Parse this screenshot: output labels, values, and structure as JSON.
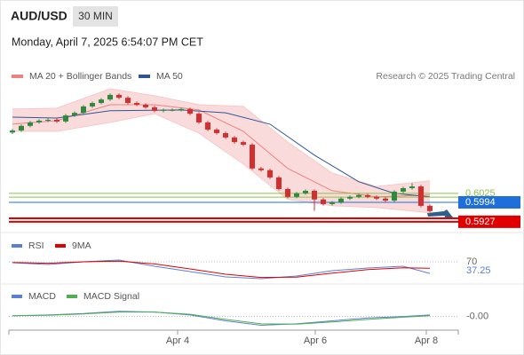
{
  "header": {
    "symbol": "AUD/USD",
    "timeframe": "30 MIN",
    "datetime": "Monday, April 7, 2025 6:54:07 PM CET"
  },
  "chart_data": [
    {
      "type": "candlestick",
      "attribution": "Research © 2025 Trading Central",
      "up_color": "#2e8b3e",
      "down_color": "#d32f2f",
      "xlim": [
        -0.4,
        50.2
      ],
      "ylim": [
        0.5896,
        0.6478
      ],
      "candles": {
        "open": [
          0.6235,
          0.6242,
          0.6258,
          0.627,
          0.6276,
          0.6279,
          0.6273,
          0.6294,
          0.6303,
          0.6325,
          0.6337,
          0.6349,
          0.6365,
          0.6355,
          0.6337,
          0.6331,
          0.6322,
          0.631,
          0.6313,
          0.6313,
          0.6316,
          0.63,
          0.627,
          0.6245,
          0.6233,
          0.6218,
          0.6202,
          0.6193,
          0.6111,
          0.6105,
          0.608,
          0.604,
          0.6013,
          0.6025,
          0.6034,
          0.6004,
          0.5988,
          0.5994,
          0.6007,
          0.6013,
          0.6019,
          0.6013,
          0.6007,
          0.6,
          0.6031,
          0.6043,
          0.6049,
          0.5982
        ],
        "high": [
          0.6247,
          0.6263,
          0.6275,
          0.6281,
          0.6284,
          0.6284,
          0.6299,
          0.6308,
          0.633,
          0.6342,
          0.6354,
          0.637,
          0.637,
          0.636,
          0.6342,
          0.6336,
          0.6327,
          0.6318,
          0.6318,
          0.6321,
          0.6321,
          0.6305,
          0.6275,
          0.625,
          0.6238,
          0.6223,
          0.6207,
          0.6198,
          0.6116,
          0.611,
          0.6085,
          0.6045,
          0.603,
          0.6039,
          0.6039,
          0.6009,
          0.5999,
          0.6012,
          0.6018,
          0.6024,
          0.6024,
          0.6018,
          0.6012,
          0.6036,
          0.6048,
          0.606,
          0.6054,
          0.5987
        ],
        "low": [
          0.623,
          0.6237,
          0.6253,
          0.6265,
          0.6271,
          0.6268,
          0.6268,
          0.6289,
          0.6298,
          0.632,
          0.6332,
          0.6344,
          0.635,
          0.6332,
          0.6326,
          0.6317,
          0.6305,
          0.6305,
          0.6308,
          0.6308,
          0.6295,
          0.6265,
          0.624,
          0.6228,
          0.6213,
          0.6197,
          0.6188,
          0.6106,
          0.61,
          0.6075,
          0.6035,
          0.6008,
          0.6008,
          0.602,
          0.5965,
          0.5983,
          0.5983,
          0.5989,
          0.6002,
          0.6008,
          0.6008,
          0.6002,
          0.5995,
          0.5995,
          0.6026,
          0.6038,
          0.5977,
          0.5959
        ],
        "close": [
          0.6242,
          0.6258,
          0.627,
          0.6276,
          0.6279,
          0.6273,
          0.6294,
          0.6303,
          0.6325,
          0.6337,
          0.6349,
          0.6365,
          0.6355,
          0.6337,
          0.6331,
          0.6322,
          0.631,
          0.6313,
          0.6313,
          0.6316,
          0.63,
          0.627,
          0.6245,
          0.6233,
          0.6218,
          0.6202,
          0.6193,
          0.6111,
          0.6105,
          0.608,
          0.604,
          0.6013,
          0.6025,
          0.6034,
          0.6004,
          0.5988,
          0.5994,
          0.6007,
          0.6013,
          0.6019,
          0.6013,
          0.6007,
          0.6,
          0.6031,
          0.6043,
          0.6049,
          0.5982,
          0.5964
        ]
      },
      "overlays": [
        {
          "name": "MA 20 + Bollinger Bands",
          "color": "#f08080",
          "band_color": "#f8c8c8",
          "x": [
            0,
            5,
            11,
            16,
            21,
            26,
            31,
            36,
            41,
            47
          ],
          "values": [
            0.6264,
            0.6276,
            0.6331,
            0.6331,
            0.6313,
            0.6239,
            0.6111,
            0.6034,
            0.6013,
            0.6019
          ],
          "upper": [
            0.6316,
            0.6319,
            0.6386,
            0.6362,
            0.6331,
            0.6325,
            0.6202,
            0.6095,
            0.6049,
            0.6068
          ],
          "lower": [
            0.6239,
            0.6239,
            0.627,
            0.63,
            0.6233,
            0.6126,
            0.6004,
            0.5982,
            0.5976,
            0.5958
          ]
        },
        {
          "name": "MA 50",
          "color": "#2f5597",
          "x": [
            0,
            5,
            11,
            19,
            24,
            29,
            34,
            39,
            43,
            47
          ],
          "values": [
            0.6288,
            0.6285,
            0.631,
            0.6313,
            0.6303,
            0.6264,
            0.6157,
            0.6065,
            0.6025,
            0.6013
          ]
        }
      ],
      "levels": [
        {
          "value": 0.6025,
          "color": "#8bc34a",
          "show_label": true,
          "boxed": false
        },
        {
          "value": 0.6012,
          "color": "#8bc34a",
          "show_label": false,
          "boxed": false
        },
        {
          "value": 0.5994,
          "color": "#1e6fd9",
          "show_label": true,
          "boxed": true
        },
        {
          "value": 0.5939,
          "color": "#e00000",
          "show_label": false,
          "boxed": false
        },
        {
          "value": 0.5927,
          "color": "#e00000",
          "show_label": true,
          "boxed": true
        }
      ]
    },
    {
      "type": "line",
      "xlim": [
        -0.4,
        50.2
      ],
      "ylim": [
        15,
        95
      ],
      "yticks": [
        70
      ],
      "series": [
        {
          "name": "RSI",
          "color": "#5b7fd6",
          "x": [
            0,
            4,
            8,
            12,
            16,
            20,
            24,
            28,
            32,
            36,
            40,
            44,
            47
          ],
          "values": [
            67.5,
            62.5,
            70,
            75,
            57.5,
            42.5,
            27.5,
            22.5,
            30,
            45,
            52.5,
            57.5,
            37.25
          ]
        },
        {
          "name": "9MA",
          "color": "#e00000",
          "x": [
            0,
            4,
            8,
            12,
            16,
            20,
            24,
            28,
            32,
            36,
            40,
            44,
            47
          ],
          "values": [
            68,
            66,
            70,
            72,
            64,
            50,
            35,
            26,
            27,
            38,
            48,
            53,
            52
          ]
        }
      ]
    },
    {
      "type": "line",
      "xlim": [
        -0.4,
        50.2
      ],
      "ylim": [
        -0.003,
        0.004
      ],
      "yticks": [
        {
          "value": 0,
          "label": "-0.00"
        }
      ],
      "xticks": [
        {
          "value": 18.6,
          "label": "Apr 4"
        },
        {
          "value": 34.1,
          "label": "Apr 6"
        },
        {
          "value": 46.6,
          "label": "Apr 8"
        }
      ],
      "series": [
        {
          "name": "MACD",
          "color": "#5b7fd6",
          "x": [
            0,
            4,
            8,
            12,
            16,
            20,
            24,
            28,
            32,
            36,
            40,
            44,
            47
          ],
          "values": [
            0.0002,
            0.0004,
            0.0008,
            0.0014,
            0.0012,
            0.0004,
            -0.0012,
            -0.0024,
            -0.002,
            -0.0012,
            -0.0004,
            0,
            0.0004
          ]
        },
        {
          "name": "MACD Signal",
          "color": "#4caf50",
          "x": [
            0,
            4,
            8,
            12,
            16,
            20,
            24,
            28,
            32,
            36,
            40,
            44,
            47
          ],
          "values": [
            0.0002,
            0.0003,
            0.0007,
            0.0012,
            0.0012,
            0.0006,
            -0.0008,
            -0.002,
            -0.0021,
            -0.0015,
            -0.0008,
            -0.0002,
            0.0002
          ]
        }
      ]
    }
  ]
}
